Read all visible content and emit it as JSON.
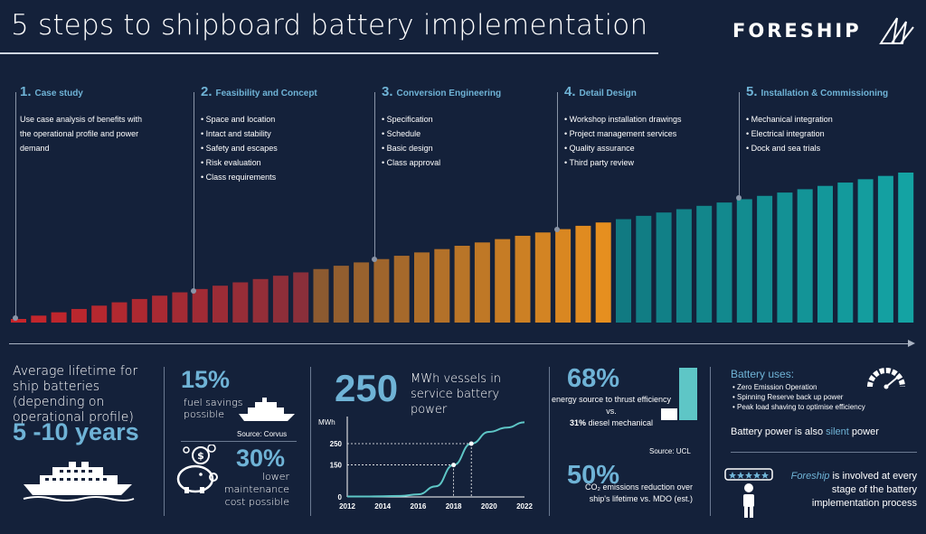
{
  "header": {
    "title": "5 steps to shipboard battery implementation",
    "logo_text": "FORESHIP"
  },
  "steps": [
    {
      "num": "1.",
      "title": "Case study",
      "text": "Use case analysis of benefits with the operational profile and power demand"
    },
    {
      "num": "2.",
      "title": "Feasibility and Concept",
      "items": [
        "• Space and location",
        "• Intact and stability",
        "• Safety and escapes",
        "• Risk evaluation",
        "• Class requirements"
      ]
    },
    {
      "num": "3.",
      "title": "Conversion Engineering",
      "items": [
        "• Specification",
        "• Schedule",
        "• Basic design",
        "• Class approval"
      ]
    },
    {
      "num": "4.",
      "title": "Detail Design",
      "items": [
        "• Workshop installation drawings",
        "• Project management services",
        "• Quality assurance",
        "• Third party review"
      ]
    },
    {
      "num": "5.",
      "title": "Installation & Commissioning",
      "items": [
        "• Mechanical integration",
        "• Electrical integration",
        "• Dock and sea trials"
      ]
    }
  ],
  "lifetime": {
    "text": "Average lifetime for ship batteries (depending on operational profile)",
    "value": "5 -10 years"
  },
  "savings": {
    "fuel_value": "15%",
    "fuel_label": "fuel savings possible",
    "source": "Source: Corvus",
    "maint_value": "30%",
    "maint_label": "lower maintenance cost possible"
  },
  "vessels": {
    "value": "250",
    "label": "MWh vessels in service battery power"
  },
  "chart_data": {
    "type": "line",
    "ylabel": "MWh",
    "x": [
      2012,
      2013,
      2014,
      2015,
      2016,
      2017,
      2018,
      2019,
      2020,
      2021,
      2022
    ],
    "values": [
      2,
      2,
      3,
      5,
      12,
      50,
      150,
      250,
      305,
      325,
      350
    ],
    "xticks": [
      "2012",
      "2014",
      "2016",
      "2018",
      "2020",
      "2022"
    ],
    "yticks": [
      "0",
      "150",
      "250"
    ],
    "highlights": [
      {
        "x": 2018,
        "y": 150
      },
      {
        "x": 2019,
        "y": 250
      }
    ],
    "ylim": [
      0,
      360
    ],
    "xlim": [
      2012,
      2022
    ]
  },
  "efficiency": {
    "value": "68%",
    "label_1": "energy source to thrust efficiency vs.",
    "label_bold": "31%",
    "label_2": "diesel mechanical",
    "source": "Source: UCL",
    "battery_pct": 68,
    "diesel_pct": 31
  },
  "emissions": {
    "value": "50%",
    "label": "CO₂ emissions reduction over ship's lifetime vs. MDO (est.)"
  },
  "uses": {
    "title": "Battery uses:",
    "items": [
      "• Zero Emission Operation",
      "• Spinning Reserve back up power",
      "• Peak load shaving to optimise efficiency"
    ],
    "silent_prefix": "Battery power is also",
    "silent_accent": "silent",
    "silent_suffix": "power"
  },
  "involved": {
    "brand": "Foreship",
    "text": "is involved at every stage of the battery implementation process"
  },
  "colors": {
    "background": "#14213a",
    "accent": "#6fb3d6",
    "bar_red": "#c7252b",
    "bar_orange": "#e68f1f",
    "bar_teal": "#14a3a3"
  }
}
